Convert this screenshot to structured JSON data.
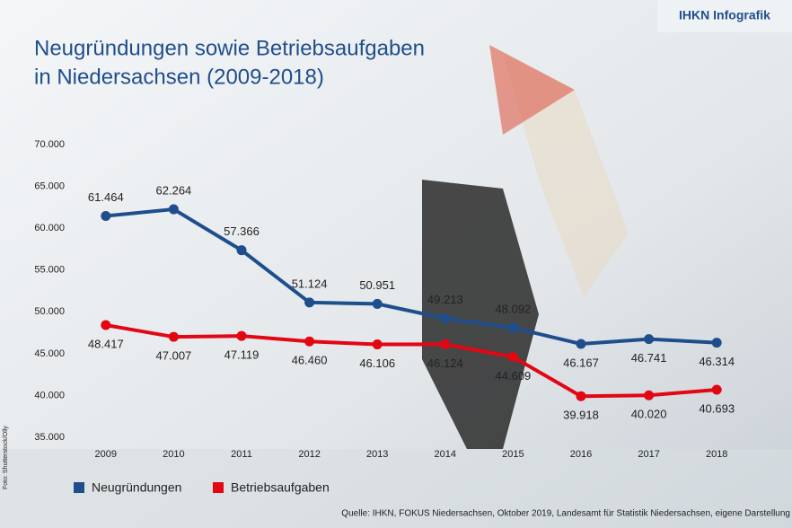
{
  "brand": "IHKN Infografik",
  "credit": "Foto: Shutterstock/Olly",
  "source": "Quelle: IHKN, FOKUS Niedersachsen, Oktober 2019, Landesamt für Statistik Niedersachsen, eigene Darstellung",
  "chart_data": {
    "type": "line",
    "title": [
      "Neugründungen sowie Betriebsaufgaben",
      "in Niedersachsen (2009-2018)"
    ],
    "categories": [
      "2009",
      "2010",
      "2011",
      "2012",
      "2013",
      "2014",
      "2015",
      "2016",
      "2017",
      "2018"
    ],
    "series": [
      {
        "name": "Neugründungen",
        "color": "#1f4e8c",
        "values": [
          61464,
          62264,
          57366,
          51124,
          50951,
          49213,
          48092,
          46167,
          46741,
          46314
        ],
        "value_labels": [
          "61.464",
          "62.264",
          "57.366",
          "51.124",
          "50.951",
          "49.213",
          "48.092",
          "46.167",
          "46.741",
          "46.314"
        ]
      },
      {
        "name": "Betriebsaufgaben",
        "color": "#e30613",
        "values": [
          48417,
          47007,
          47119,
          46460,
          46106,
          46124,
          44609,
          39918,
          40020,
          40693
        ],
        "value_labels": [
          "48.417",
          "47.007",
          "47.119",
          "46.460",
          "46.106",
          "46.124",
          "44.609",
          "39.918",
          "40.020",
          "40.693"
        ]
      }
    ],
    "ylim": [
      35000,
      70000
    ],
    "yticks": [
      {
        "value": 35000,
        "label": "35.000"
      },
      {
        "value": 40000,
        "label": "40.000"
      },
      {
        "value": 45000,
        "label": "45.000"
      },
      {
        "value": 50000,
        "label": "50.000"
      },
      {
        "value": 55000,
        "label": "55.000"
      },
      {
        "value": 60000,
        "label": "60.000"
      },
      {
        "value": 65000,
        "label": "65.000"
      },
      {
        "value": 70000,
        "label": "70.000"
      }
    ]
  }
}
